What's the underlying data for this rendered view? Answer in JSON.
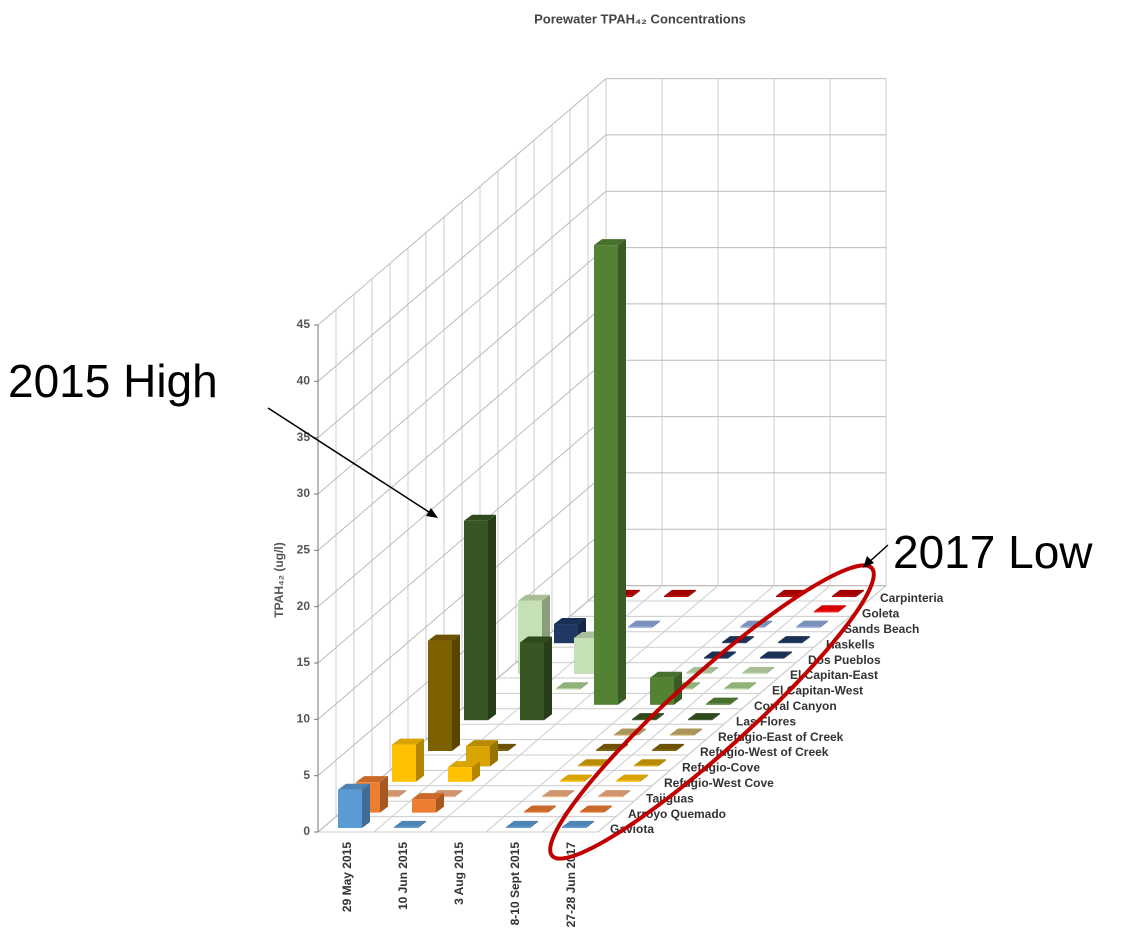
{
  "chart_data": {
    "type": "bar3d",
    "title": "Porewater TPAH₄₂ Concentrations",
    "y_label": "TPAH₄₂ (ug/l)",
    "categories": [
      "29 May 2015",
      "10 Jun 2015",
      "3 Aug 2015",
      "8-10 Sept 2015",
      "27-28 Jun 2017"
    ],
    "series": [
      {
        "name": "Gaviota",
        "color": "#5b9bd5",
        "values": [
          3.4,
          0.1,
          null,
          0.1,
          0.1
        ]
      },
      {
        "name": "Arroyo Quemado",
        "color": "#ed7d31",
        "values": [
          2.7,
          1.2,
          null,
          0.1,
          0.1
        ]
      },
      {
        "name": "Tajiguas",
        "color": "#f4b183",
        "values": [
          0.1,
          0.1,
          null,
          0.1,
          0.1
        ]
      },
      {
        "name": "Refugio-West Cove",
        "color": "#ffc000",
        "values": [
          3.3,
          1.3,
          null,
          0.1,
          0.1
        ]
      },
      {
        "name": "Refugio-Cove",
        "color": "#d9a400",
        "values": [
          null,
          1.8,
          null,
          0.1,
          0.1
        ]
      },
      {
        "name": "Refugio-West of Creek",
        "color": "#7f6000",
        "values": [
          9.8,
          0.1,
          null,
          0.1,
          0.1
        ]
      },
      {
        "name": "Refugio-East of Creek",
        "color": "#c9b26b",
        "values": [
          null,
          null,
          null,
          0.1,
          0.1
        ]
      },
      {
        "name": "Las Flores",
        "color": "#375623",
        "values": [
          17.7,
          6.9,
          null,
          0.1,
          0.1
        ]
      },
      {
        "name": "Corral Canyon",
        "color": "#548235",
        "values": [
          null,
          null,
          40.8,
          2.4,
          0.1
        ]
      },
      {
        "name": "El Capitan-West",
        "color": "#a9d18e",
        "values": [
          null,
          0.1,
          null,
          0.1,
          0.1
        ]
      },
      {
        "name": "El Capitan-East",
        "color": "#c5e0b4",
        "values": [
          6.5,
          3.2,
          null,
          0.1,
          0.1
        ]
      },
      {
        "name": "Dos Pueblos",
        "color": "#203864",
        "values": [
          null,
          null,
          null,
          0.1,
          0.1
        ]
      },
      {
        "name": "Haskells",
        "color": "#1f3864",
        "values": [
          1.7,
          null,
          null,
          0.1,
          0.1
        ]
      },
      {
        "name": "Sands Beach",
        "color": "#8faadc",
        "values": [
          null,
          0.1,
          null,
          0.1,
          0.1
        ]
      },
      {
        "name": "Goleta",
        "color": "#ff0000",
        "values": [
          null,
          null,
          null,
          null,
          0.1
        ]
      },
      {
        "name": "Carpinteria",
        "color": "#c00000",
        "values": [
          0.1,
          0.1,
          null,
          0.1,
          0.1
        ]
      }
    ],
    "ylim": [
      0,
      45
    ],
    "yticks": [
      0,
      5,
      10,
      15,
      20,
      25,
      30,
      35,
      40,
      45
    ],
    "grid": true,
    "annotations": [
      "2015 High",
      "2017 Low"
    ]
  }
}
